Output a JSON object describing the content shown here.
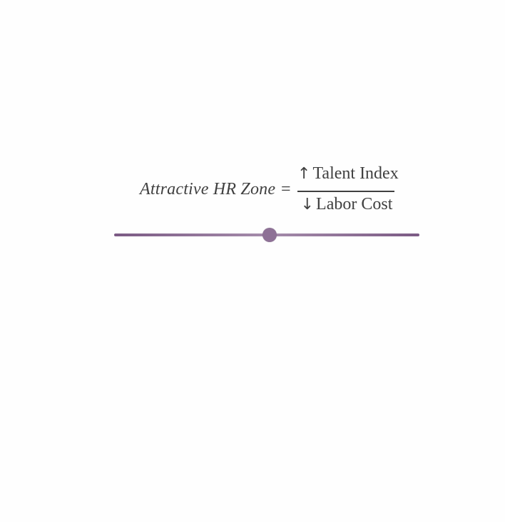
{
  "formula": {
    "lhs": "Attractive HR Zone",
    "equals": "=",
    "numerator": {
      "arrow": "↑",
      "text": "Talent Index"
    },
    "denominator": {
      "arrow": "↓",
      "text": "Labor Cost"
    }
  },
  "slider": {
    "value": 0.51,
    "track_color": "#7b5a84",
    "thumb_color": "#8e7196"
  }
}
